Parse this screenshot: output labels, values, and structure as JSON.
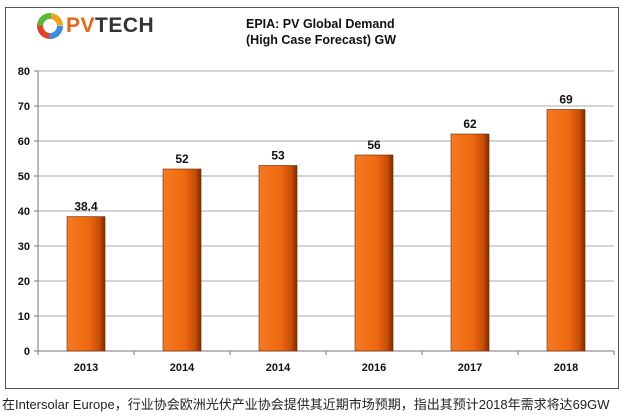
{
  "logo": {
    "text_pv": "PV",
    "text_tech": "TECH"
  },
  "caption": "在Intersolar Europe，行业协会欧洲光伏产业协会提供其近期市场预期，指出其预计2018年需求将达69GW",
  "chart_data": {
    "type": "bar",
    "title_line1": "EPIA: PV Global Demand",
    "title_line2": "(High Case Forecast) GW",
    "categories": [
      "2013",
      "2014",
      "2014",
      "2016",
      "2017",
      "2018"
    ],
    "values": [
      38.4,
      52,
      53,
      56,
      62,
      69
    ],
    "data_labels": [
      "38.4",
      "52",
      "53",
      "56",
      "62",
      "69"
    ],
    "xlabel": "",
    "ylabel": "",
    "ylim": [
      0,
      80
    ],
    "yticks": [
      0,
      10,
      20,
      30,
      40,
      50,
      60,
      70,
      80
    ],
    "grid": "horizontal",
    "bar_color": "#f06a10",
    "bar_shadow": "#7a2a00"
  }
}
